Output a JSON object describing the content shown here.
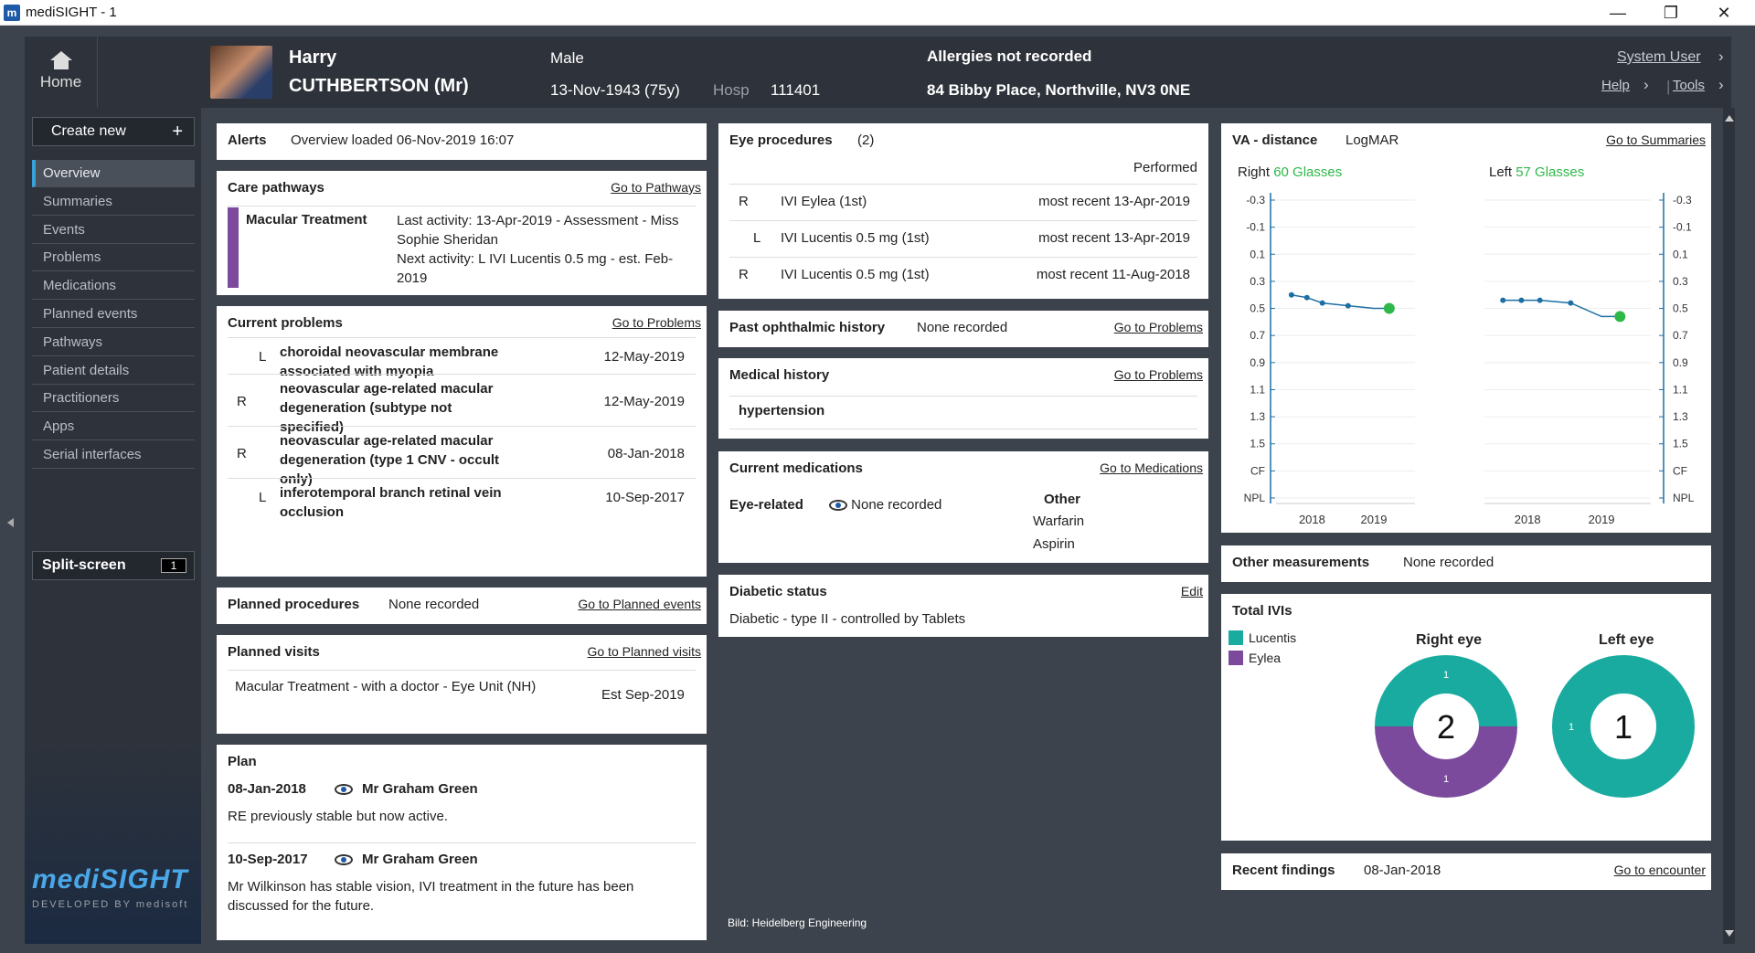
{
  "window": {
    "title": "mediSIGHT - 1",
    "app_icon": "m"
  },
  "header": {
    "home_label": "Home",
    "first_name": "Harry",
    "last_name": "CUTHBERTSON (Mr)",
    "sex": "Male",
    "dob": "13-Nov-1943 (75y)",
    "hosp_label": "Hosp",
    "hosp_number": "111401",
    "allergies": "Allergies not recorded",
    "address": "84 Bibby Place, Northville, NV3 0NE",
    "user": "System User",
    "help": "Help",
    "tools": "Tools"
  },
  "sidebar": {
    "create_new": "Create new",
    "items": [
      "Overview",
      "Summaries",
      "Events",
      "Problems",
      "Medications",
      "Planned events",
      "Pathways",
      "Patient details",
      "Practitioners",
      "Apps",
      "Serial interfaces"
    ],
    "active": "Overview",
    "split_screen": "Split-screen",
    "split_count": "1",
    "logo": "mediSIGHT",
    "developed_by": "DEVELOPED BY medisoft"
  },
  "alerts": {
    "title": "Alerts",
    "text": "Overview loaded 06-Nov-2019 16:07"
  },
  "care_pathways": {
    "title": "Care pathways",
    "link": "Go to Pathways",
    "name": "Macular Treatment",
    "detail": "Last activity: 13-Apr-2019 - Assessment - Miss Sophie Sheridan\nNext activity: L IVI Lucentis 0.5 mg - est. Feb-2019"
  },
  "current_problems": {
    "title": "Current problems",
    "link": "Go to Problems",
    "rows": [
      {
        "side": "L",
        "desc": "choroidal neovascular membrane associated with myopia",
        "date": "12-May-2019"
      },
      {
        "side": "R",
        "desc": "neovascular age-related macular degeneration (subtype not specified)",
        "date": "12-May-2019"
      },
      {
        "side": "R",
        "desc": "neovascular age-related macular degeneration (type 1 CNV - occult only)",
        "date": "08-Jan-2018"
      },
      {
        "side": "L",
        "desc": "inferotemporal branch retinal vein occlusion",
        "date": "10-Sep-2017"
      }
    ]
  },
  "planned_procedures": {
    "title": "Planned procedures",
    "value": "None recorded",
    "link": "Go to Planned events"
  },
  "planned_visits": {
    "title": "Planned visits",
    "link": "Go to Planned visits",
    "desc": "Macular Treatment - with a doctor - Eye Unit (NH)",
    "date": "Est Sep-2019"
  },
  "plan": {
    "title": "Plan",
    "entries": [
      {
        "date": "08-Jan-2018",
        "doctor": "Mr Graham Green",
        "note": "RE previously stable but now active."
      },
      {
        "date": "10-Sep-2017",
        "doctor": "Mr Graham Green",
        "note": "Mr Wilkinson has stable vision, IVI treatment in the future has been discussed for the future."
      }
    ]
  },
  "eye_procedures": {
    "title": "Eye procedures",
    "count": "(2)",
    "col_header": "Performed",
    "rows": [
      {
        "side": "R",
        "name": "IVI Eylea (1st)",
        "date": "most recent 13-Apr-2019"
      },
      {
        "side": "L",
        "name": "IVI Lucentis 0.5 mg (1st)",
        "date": "most recent 13-Apr-2019"
      },
      {
        "side": "R",
        "name": "IVI Lucentis 0.5 mg (1st)",
        "date": "most recent 11-Aug-2018"
      }
    ]
  },
  "past_ophthalmic": {
    "title": "Past ophthalmic history",
    "value": "None recorded",
    "link": "Go to Problems"
  },
  "medical_history": {
    "title": "Medical history",
    "link": "Go to Problems",
    "item": "hypertension"
  },
  "current_medications": {
    "title": "Current medications",
    "link": "Go to Medications",
    "eye_label": "Eye-related",
    "eye_value": "None recorded",
    "other_label": "Other",
    "other_items": [
      "Warfarin",
      "Aspirin"
    ]
  },
  "diabetic_status": {
    "title": "Diabetic status",
    "link": "Edit",
    "value": "Diabetic - type II - controlled by Tablets"
  },
  "credit": "Bild: Heidelberg Engineering",
  "va": {
    "title": "VA - distance",
    "scale": "LogMAR",
    "link": "Go to Summaries",
    "right_label": "Right",
    "right_value": "60 Glasses",
    "left_label": "Left",
    "left_value": "57 Glasses",
    "accent": "#2fb84a",
    "line_color": "#1d6fa3"
  },
  "other_measurements": {
    "title": "Other measurements",
    "value": "None recorded"
  },
  "total_ivis": {
    "title": "Total IVIs",
    "legend": [
      {
        "name": "Lucentis",
        "color": "#1aaba0"
      },
      {
        "name": "Eylea",
        "color": "#7b4a9c"
      }
    ],
    "right_title": "Right eye",
    "left_title": "Left eye"
  },
  "recent_findings": {
    "title": "Recent findings",
    "date": "08-Jan-2018",
    "link": "Go to encounter"
  },
  "chart_data": [
    {
      "type": "line",
      "name": "VA distance right",
      "yticks": [
        "-0.3",
        "-0.1",
        "0.1",
        "0.3",
        "0.5",
        "0.7",
        "0.9",
        "1.1",
        "1.3",
        "1.5",
        "CF",
        "NPL"
      ],
      "xticks": [
        "2018",
        "2019"
      ],
      "ylim": [
        -0.3,
        1.9
      ],
      "x": [
        "2017-09",
        "2017-12",
        "2018-03",
        "2018-08",
        "2019-01",
        "2019-04"
      ],
      "y": [
        0.4,
        0.42,
        0.46,
        0.48,
        0.5,
        0.5
      ]
    },
    {
      "type": "line",
      "name": "VA distance left",
      "yticks": [
        "-0.3",
        "-0.1",
        "0.1",
        "0.3",
        "0.5",
        "0.7",
        "0.9",
        "1.1",
        "1.3",
        "1.5",
        "CF",
        "NPL"
      ],
      "xticks": [
        "2018",
        "2019"
      ],
      "ylim": [
        -0.3,
        1.9
      ],
      "x": [
        "2017-09",
        "2017-12",
        "2018-03",
        "2018-08",
        "2019-01",
        "2019-04"
      ],
      "y": [
        0.44,
        0.44,
        0.44,
        0.46,
        0.56,
        0.56
      ]
    },
    {
      "type": "pie",
      "name": "Right eye",
      "total": "2",
      "slices": [
        {
          "label": "Lucentis",
          "value": 1
        },
        {
          "label": "Eylea",
          "value": 1
        }
      ]
    },
    {
      "type": "pie",
      "name": "Left eye",
      "total": "1",
      "slices": [
        {
          "label": "Lucentis",
          "value": 1
        }
      ]
    }
  ]
}
